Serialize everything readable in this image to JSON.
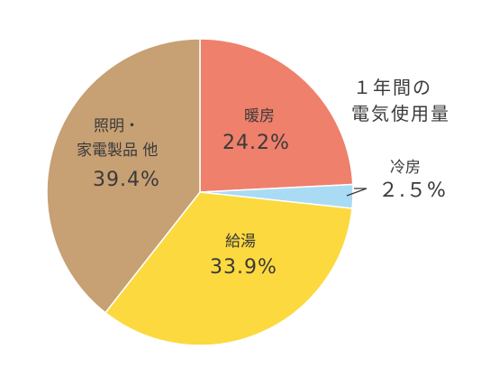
{
  "chart_data": {
    "type": "pie",
    "title_lines": [
      "１年間の",
      "電気使用量"
    ],
    "slices": [
      {
        "label_lines": [
          "暖房"
        ],
        "value": 24.2,
        "value_label": "24.2%",
        "color": "#ef806c"
      },
      {
        "label_lines": [
          "冷房"
        ],
        "value": 2.5,
        "value_label": "２.５%",
        "color": "#a9dbf5"
      },
      {
        "label_lines": [
          "給湯"
        ],
        "value": 33.9,
        "value_label": "33.9%",
        "color": "#fcd93f"
      },
      {
        "label_lines": [
          "照明・",
          "家電製品 他"
        ],
        "value": 39.4,
        "value_label": "39.4%",
        "color": "#c7a074"
      }
    ]
  }
}
